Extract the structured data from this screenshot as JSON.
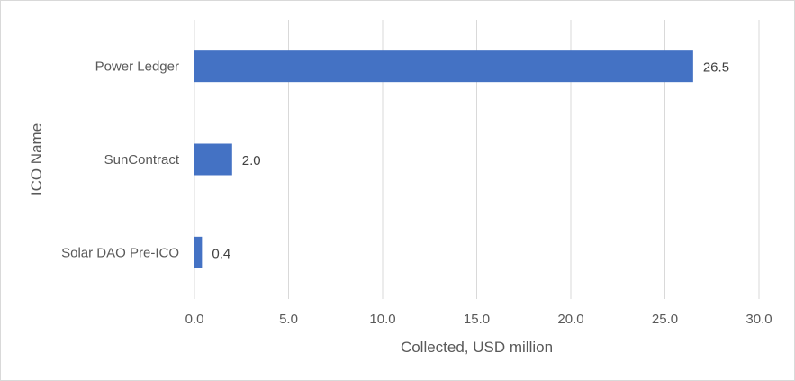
{
  "chart_data": {
    "type": "bar",
    "orientation": "horizontal",
    "categories": [
      "Power Ledger",
      "SunContract",
      "Solar DAO Pre-ICO"
    ],
    "values": [
      26.5,
      2.0,
      0.4
    ],
    "data_labels": [
      "26.5",
      "2.0",
      "0.4"
    ],
    "xlabel": "Collected, USD million",
    "ylabel": "ICO Name",
    "xlim": [
      0,
      30
    ],
    "x_ticks": [
      "0.0",
      "5.0",
      "10.0",
      "15.0",
      "20.0",
      "25.0",
      "30.0"
    ],
    "grid": true,
    "legend": "none",
    "bar_color": "#4472C4"
  }
}
